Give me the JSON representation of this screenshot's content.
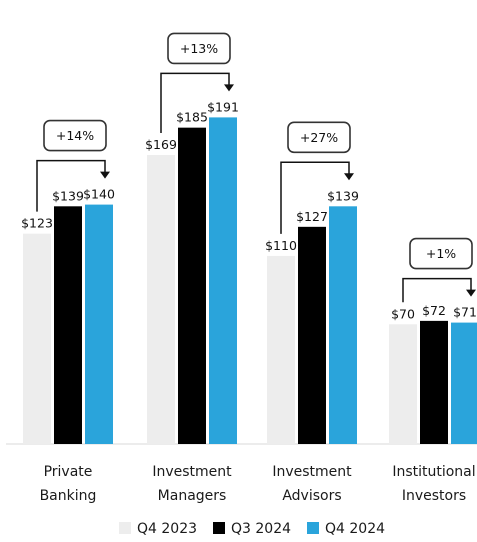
{
  "chart_data": {
    "type": "bar",
    "categories": [
      [
        "Private",
        "Banking"
      ],
      [
        "Investment",
        "Managers"
      ],
      [
        "Investment",
        "Advisors"
      ],
      [
        "Institutional",
        "Investors"
      ]
    ],
    "series": [
      {
        "name": "Q4 2023",
        "color": "#ededed",
        "values": [
          123,
          169,
          110,
          70
        ],
        "labels": [
          "$123",
          "$169",
          "$110",
          "$70"
        ]
      },
      {
        "name": "Q3 2024",
        "color": "#000000",
        "values": [
          139,
          185,
          127,
          72
        ],
        "labels": [
          "$139",
          "$185",
          "$127",
          "$72"
        ]
      },
      {
        "name": "Q4 2024",
        "color": "#2aa4db",
        "values": [
          140,
          191,
          139,
          71
        ],
        "labels": [
          "$140",
          "$191",
          "$139",
          "$71"
        ]
      }
    ],
    "growth_labels": [
      "+14%",
      "+13%",
      "+27%",
      "+1%"
    ],
    "ylim": [
      0,
      200
    ],
    "grid": false,
    "legend_position": "bottom"
  }
}
